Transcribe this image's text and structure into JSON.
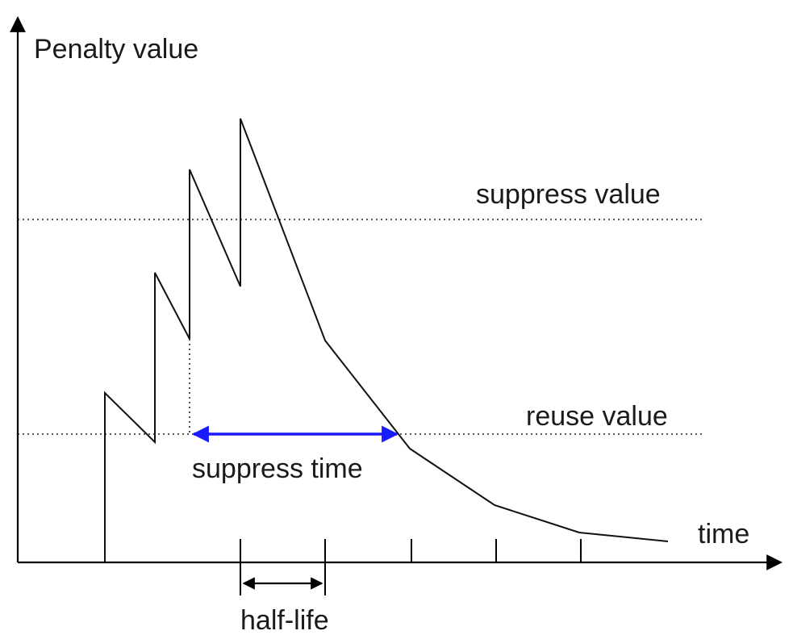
{
  "labels": {
    "y_axis": "Penalty value",
    "x_axis": "time",
    "suppress_value": "suppress value",
    "reuse_value": "reuse value",
    "suppress_time": "suppress time",
    "half_life": "half-life"
  },
  "colors": {
    "curve": "#111111",
    "suppress_time_arrow": "#1a1aff",
    "axes": "#000000"
  }
}
